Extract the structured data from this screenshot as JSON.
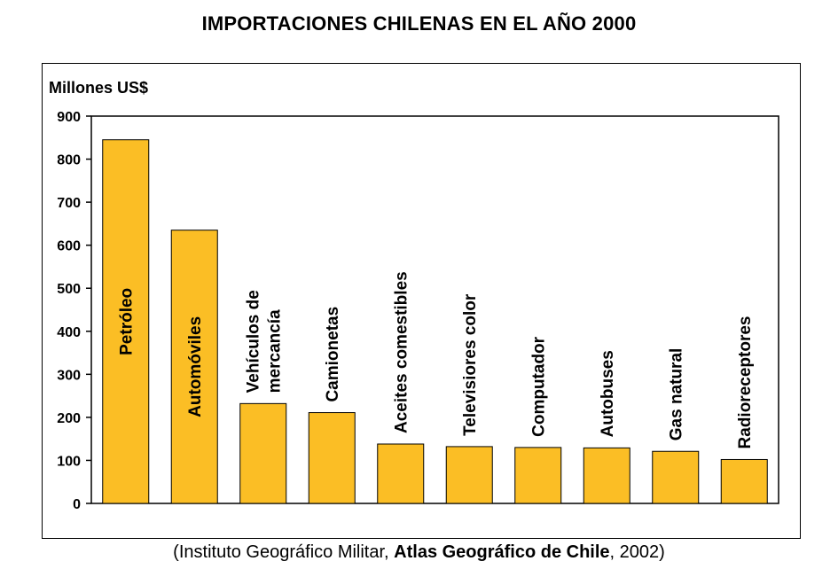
{
  "chart_data": {
    "type": "bar",
    "title": "IMPORTACIONES CHILENAS EN EL AÑO 2000",
    "ylabel": "Millones US$",
    "xlabel": "",
    "ylim": [
      0,
      900
    ],
    "yticks": [
      0,
      100,
      200,
      300,
      400,
      500,
      600,
      700,
      800,
      900
    ],
    "grid": false,
    "bar_color": "#FBBE25",
    "categories": [
      [
        "Petróleo"
      ],
      [
        "Automóviles"
      ],
      [
        "Vehículos de",
        "mercancía"
      ],
      [
        "Camionetas"
      ],
      [
        "Aceites comestibles"
      ],
      [
        "Televisiores color"
      ],
      [
        "Computador"
      ],
      [
        "Autobuses"
      ],
      [
        "Gas natural"
      ],
      [
        "Radioreceptores"
      ]
    ],
    "values": [
      845,
      635,
      232,
      211,
      138,
      132,
      130,
      129,
      121,
      102
    ]
  },
  "caption": {
    "prefix": "(Instituto Geográfico Militar, ",
    "bold": "Atlas Geográfico de Chile",
    "suffix": ", 2002)"
  }
}
